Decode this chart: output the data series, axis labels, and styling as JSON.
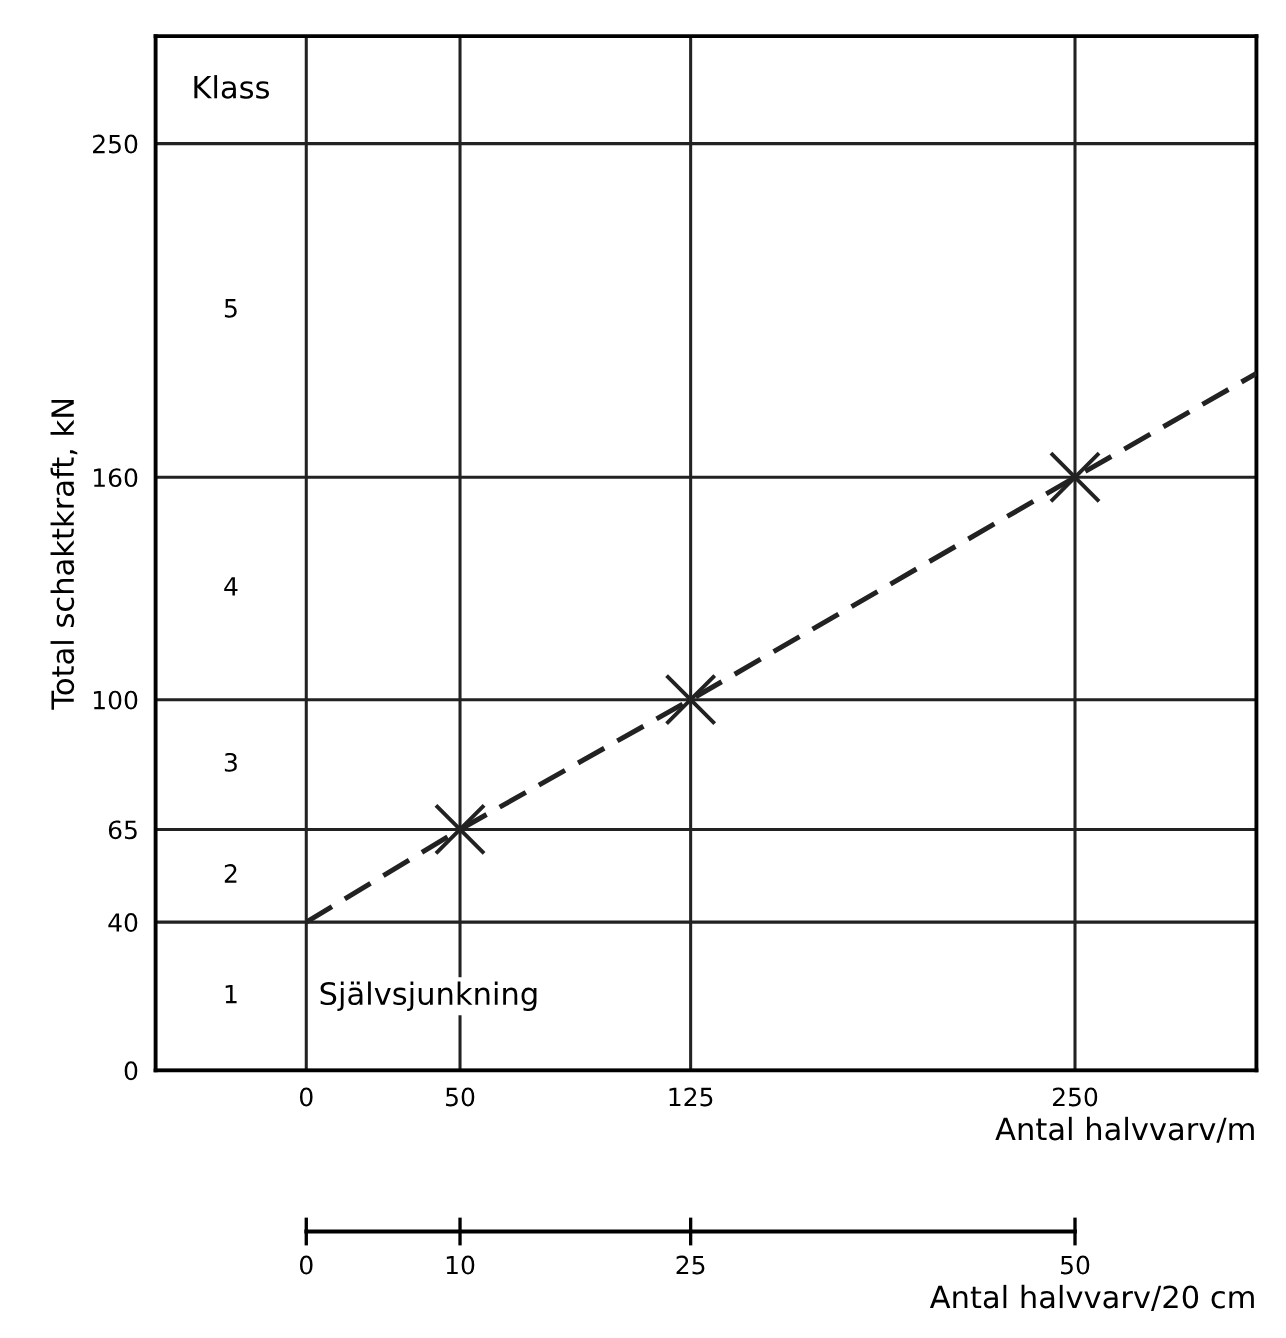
{
  "chart_data": {
    "type": "line",
    "xlabel": "Antal halvvarv/m",
    "ylabel": "Total schaktkraft, kN",
    "x2label": "Antal halvvarv/20 cm",
    "xlim": [
      -49,
      309
    ],
    "xticks": [
      0,
      50,
      125,
      250
    ],
    "ylim": [
      0,
      279
    ],
    "yticks": [
      0,
      40,
      65,
      100,
      160,
      250
    ],
    "x2lim": [
      -9.8,
      61.8
    ],
    "x2ticks": [
      0,
      10,
      25,
      50
    ],
    "grid": true,
    "tick_labels": "xy",
    "line_style": "dashed",
    "series": [
      {
        "color": "#222222",
        "x": [
          0,
          50,
          125,
          250,
          309
        ],
        "values": [
          40,
          65,
          100,
          160,
          188
        ]
      },
      {
        "type": "scatter",
        "color": "#222222",
        "x": [
          50,
          125,
          250
        ],
        "values": [
          65,
          100,
          160
        ],
        "marker": "cross"
      }
    ],
    "annotations": [
      "Klass",
      "1",
      "2",
      "3",
      "4",
      "5",
      "Självsjunkning"
    ]
  }
}
